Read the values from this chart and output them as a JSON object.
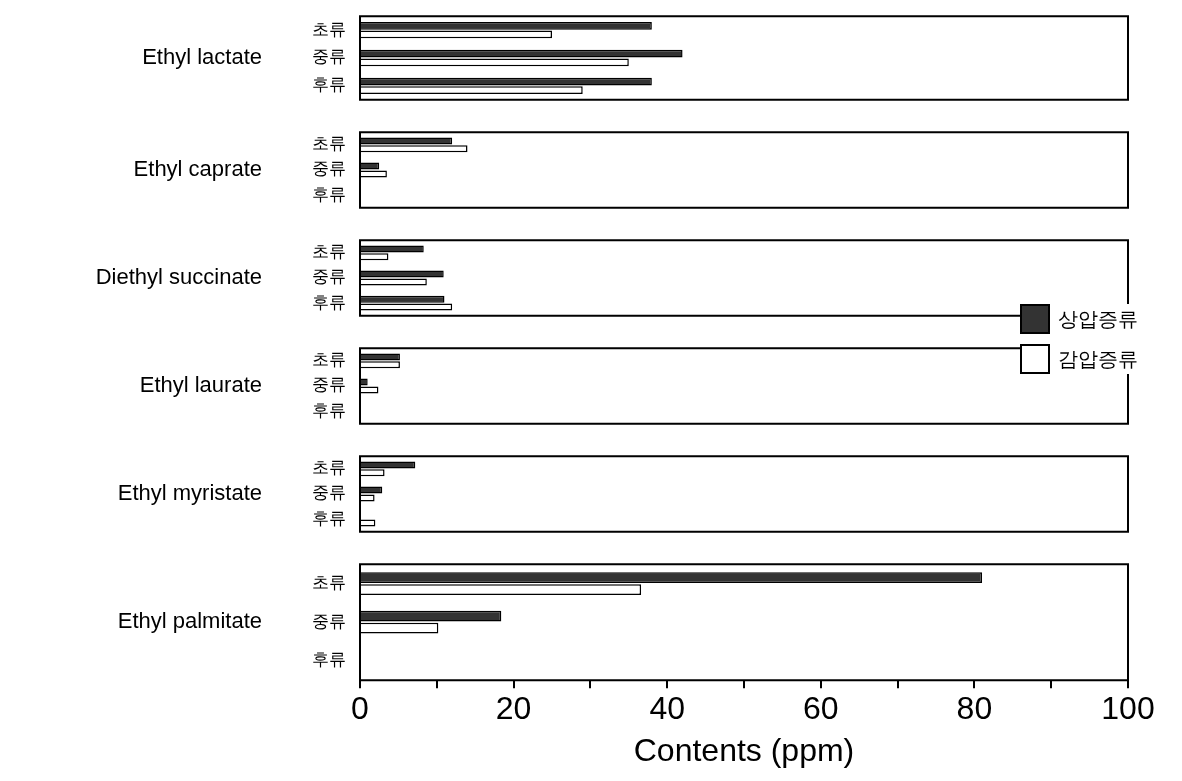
{
  "chart_data": [
    {
      "type": "bar",
      "orientation": "horizontal",
      "ylabel": "Ethyl lactate",
      "categories": [
        "초류",
        "중류",
        "후류"
      ],
      "xlim": [
        0,
        100
      ],
      "tick_labels": "y",
      "series": [
        {
          "color": "#333333",
          "values": [
            38,
            42,
            38
          ]
        },
        {
          "color": "#ffffff",
          "values": [
            25,
            35,
            29
          ]
        }
      ]
    },
    {
      "type": "bar",
      "orientation": "horizontal",
      "ylabel": "Ethyl caprate",
      "categories": [
        "초류",
        "중류",
        "후류"
      ],
      "xlim": [
        0,
        100
      ],
      "tick_labels": "y",
      "series": [
        {
          "color": "#333333",
          "values": [
            12,
            2.5,
            0
          ]
        },
        {
          "color": "#ffffff",
          "values": [
            14,
            3.5,
            0
          ]
        }
      ]
    },
    {
      "type": "bar",
      "orientation": "horizontal",
      "ylabel": "Diethyl succinate",
      "categories": [
        "초류",
        "중류",
        "후류"
      ],
      "xlim": [
        0,
        100
      ],
      "tick_labels": "y",
      "legend": "right",
      "series": [
        {
          "name": "상압증류",
          "color": "#333333",
          "values": [
            8.3,
            10.9,
            11
          ]
        },
        {
          "name": "감압증류",
          "color": "#ffffff",
          "values": [
            3.7,
            8.7,
            12
          ]
        }
      ]
    },
    {
      "type": "bar",
      "orientation": "horizontal",
      "ylabel": "Ethyl laurate",
      "categories": [
        "초류",
        "중류",
        "후류"
      ],
      "xlim": [
        0,
        100
      ],
      "tick_labels": "y",
      "series": [
        {
          "color": "#333333",
          "values": [
            5.2,
            1,
            0
          ]
        },
        {
          "color": "#ffffff",
          "values": [
            5.2,
            2.4,
            0
          ]
        }
      ]
    },
    {
      "type": "bar",
      "orientation": "horizontal",
      "ylabel": "Ethyl myristate",
      "categories": [
        "초류",
        "중류",
        "후류"
      ],
      "xlim": [
        0,
        100
      ],
      "tick_labels": "y",
      "series": [
        {
          "color": "#333333",
          "values": [
            7.2,
            2.9,
            0
          ]
        },
        {
          "color": "#ffffff",
          "values": [
            3.2,
            1.9,
            2
          ]
        }
      ]
    },
    {
      "type": "bar",
      "orientation": "horizontal",
      "ylabel": "Ethyl palmitate",
      "xlabel": "Contents (ppm)",
      "categories": [
        "초류",
        "중류",
        "후류"
      ],
      "xlim": [
        0,
        100
      ],
      "xticks": [
        0,
        {
          "value": 10,
          "label": null
        },
        20,
        {
          "value": 30,
          "label": null
        },
        40,
        {
          "value": 50,
          "label": null
        },
        60,
        {
          "value": 70,
          "label": null
        },
        80,
        {
          "value": 90,
          "label": null
        },
        100
      ],
      "series": [
        {
          "color": "#333333",
          "values": [
            81,
            18.4,
            0
          ]
        },
        {
          "color": "#ffffff",
          "values": [
            36.6,
            10.2,
            0
          ]
        }
      ]
    }
  ]
}
